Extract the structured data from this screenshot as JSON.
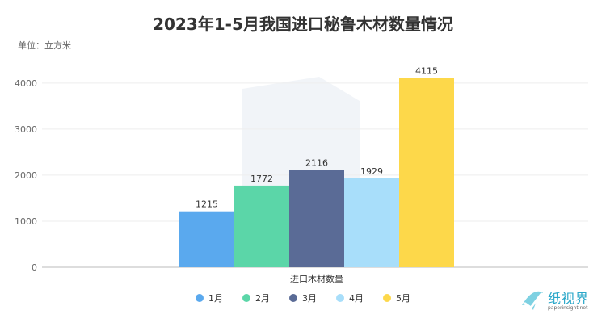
{
  "chart_data": {
    "type": "bar",
    "title": "2023年1-5月我国进口秘鲁木材数量情况",
    "unit_label": "单位：立方米",
    "categories": [
      "进口木材数量"
    ],
    "series": [
      {
        "name": "1月",
        "values": [
          1215
        ],
        "color": "#5aa9ee"
      },
      {
        "name": "2月",
        "values": [
          1772
        ],
        "color": "#5bd6a8"
      },
      {
        "name": "3月",
        "values": [
          2116
        ],
        "color": "#5a6b96"
      },
      {
        "name": "4月",
        "values": [
          1929
        ],
        "color": "#a8defa"
      },
      {
        "name": "5月",
        "values": [
          4115
        ],
        "color": "#fdd84a"
      }
    ],
    "y_ticks": [
      "0",
      "1000",
      "2000",
      "3000",
      "4000"
    ],
    "ylim": [
      0,
      4400
    ],
    "grid": true,
    "legend_position": "bottom"
  },
  "brand": {
    "name": "纸视界",
    "url": "paperinsight.net"
  }
}
